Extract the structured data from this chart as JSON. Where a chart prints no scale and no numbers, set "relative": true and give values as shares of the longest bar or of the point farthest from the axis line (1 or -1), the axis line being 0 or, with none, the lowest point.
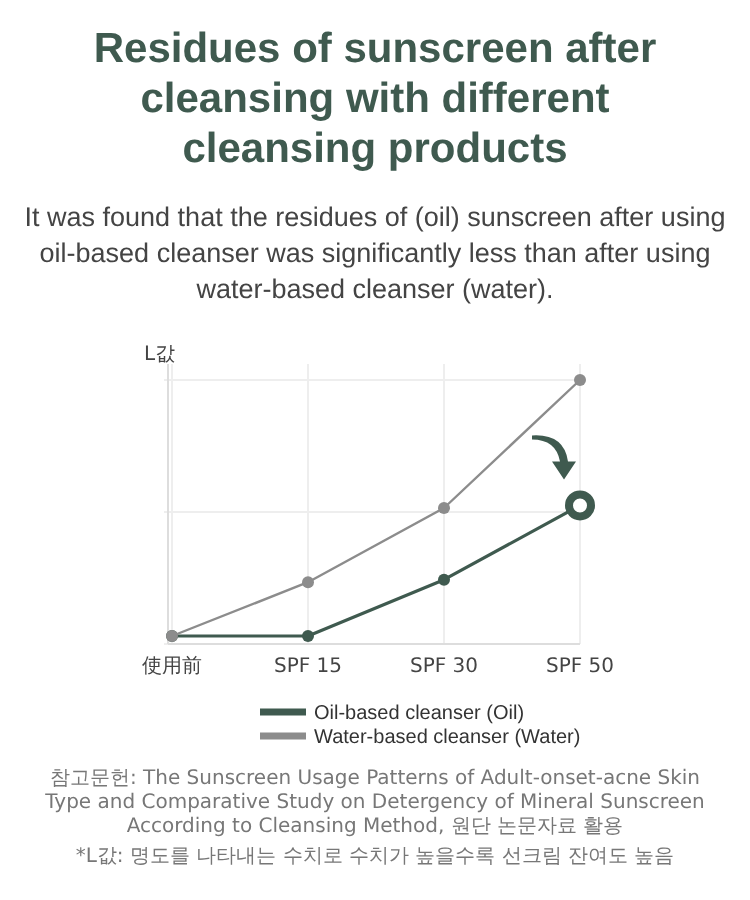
{
  "chart_data": {
    "type": "line",
    "title": "Residues of sunscreen after cleansing with different cleansing products",
    "subtitle": "It was found that the residues of (oil) sunscreen after using oil-based cleanser was significantly less than after using water-based cleanser (water).",
    "ylabel": "L값",
    "categories": [
      "使用前",
      "SPF 15",
      "SPF 30",
      "SPF 50"
    ],
    "relative": true,
    "grid": true,
    "marker": "circle",
    "legend": "bottom",
    "series": [
      {
        "name": "Oil-based cleanser (Oil)",
        "color": "#3f5a4f",
        "values": [
          0,
          0,
          0.22,
          0.51
        ]
      },
      {
        "name": "Water-based cleanser (Water)",
        "color": "#8c8c8c",
        "values": [
          0,
          0.21,
          0.5,
          1
        ]
      }
    ],
    "annotations": [
      "참고문헌: The Sunscreen Usage Patterns of Adult-onset-acne Skin Type and Comparative Study on Detergency of Mineral Sunscreen According to Cleansing Method, 원단 논문자료 활용",
      "*L값: 명도를 나타내는 수치로 수치가 높을수록 선크림 잔여도 높음"
    ]
  }
}
